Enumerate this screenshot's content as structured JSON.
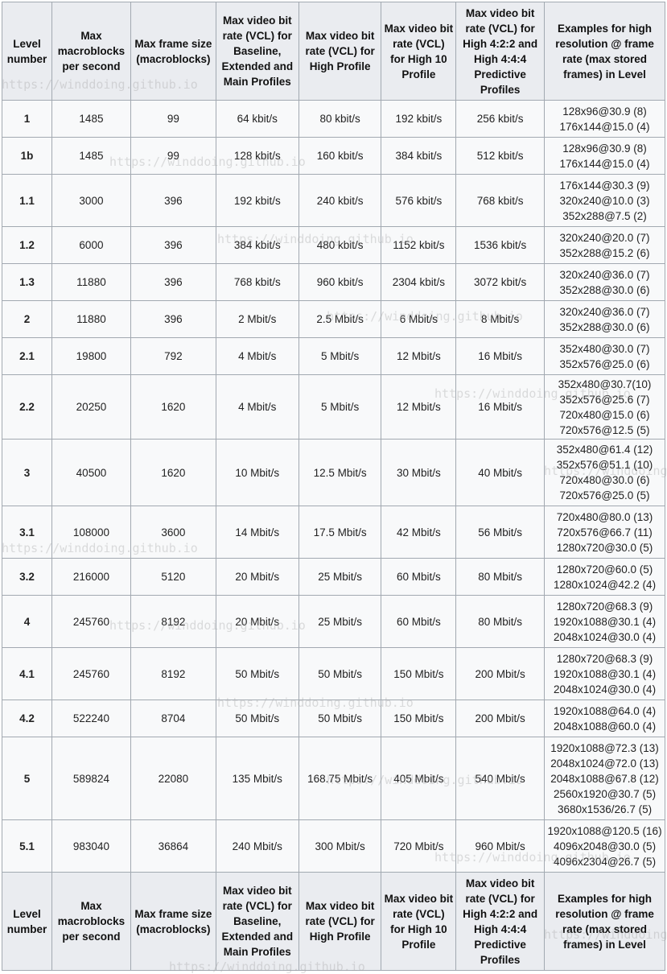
{
  "headers": [
    "Level number",
    "Max macroblocks per second",
    "Max frame size (macroblocks)",
    "Max video bit rate (VCL) for Baseline, Extended and Main Profiles",
    "Max video bit rate (VCL) for High Profile",
    "Max video bit rate (VCL) for High 10 Profile",
    "Max video bit rate (VCL) for High 4:2:2 and High 4:4:4 Predictive Profiles",
    "Examples for high resolution @ frame rate (max stored frames) in Level"
  ],
  "rows": [
    [
      "1",
      "1485",
      "99",
      "64 kbit/s",
      "80 kbit/s",
      "192 kbit/s",
      "256 kbit/s",
      [
        "128x96@30.9 (8)",
        "176x144@15.0 (4)"
      ]
    ],
    [
      "1b",
      "1485",
      "99",
      "128 kbit/s",
      "160 kbit/s",
      "384 kbit/s",
      "512 kbit/s",
      [
        "128x96@30.9 (8)",
        "176x144@15.0 (4)"
      ]
    ],
    [
      "1.1",
      "3000",
      "396",
      "192 kbit/s",
      "240 kbit/s",
      "576 kbit/s",
      "768 kbit/s",
      [
        "176x144@30.3 (9)",
        "320x240@10.0 (3)",
        "352x288@7.5 (2)"
      ]
    ],
    [
      "1.2",
      "6000",
      "396",
      "384 kbit/s",
      "480 kbit/s",
      "1152 kbit/s",
      "1536 kbit/s",
      [
        "320x240@20.0 (7)",
        "352x288@15.2 (6)"
      ]
    ],
    [
      "1.3",
      "11880",
      "396",
      "768 kbit/s",
      "960 kbit/s",
      "2304 kbit/s",
      "3072 kbit/s",
      [
        "320x240@36.0 (7)",
        "352x288@30.0 (6)"
      ]
    ],
    [
      "2",
      "11880",
      "396",
      "2 Mbit/s",
      "2.5 Mbit/s",
      "6 Mbit/s",
      "8 Mbit/s",
      [
        "320x240@36.0 (7)",
        "352x288@30.0 (6)"
      ]
    ],
    [
      "2.1",
      "19800",
      "792",
      "4 Mbit/s",
      "5 Mbit/s",
      "12 Mbit/s",
      "16 Mbit/s",
      [
        "352x480@30.0 (7)",
        "352x576@25.0 (6)"
      ]
    ],
    [
      "2.2",
      "20250",
      "1620",
      "4 Mbit/s",
      "5 Mbit/s",
      "12 Mbit/s",
      "16 Mbit/s",
      [
        "352x480@30.7(10)",
        "352x576@25.6 (7)",
        "720x480@15.0 (6)",
        "720x576@12.5 (5)"
      ]
    ],
    [
      "3",
      "40500",
      "1620",
      "10 Mbit/s",
      "12.5 Mbit/s",
      "30 Mbit/s",
      "40 Mbit/s",
      [
        "352x480@61.4 (12)",
        "352x576@51.1 (10)",
        "720x480@30.0 (6)",
        "720x576@25.0 (5)"
      ]
    ],
    [
      "3.1",
      "108000",
      "3600",
      "14 Mbit/s",
      "17.5 Mbit/s",
      "42 Mbit/s",
      "56 Mbit/s",
      [
        "720x480@80.0 (13)",
        "720x576@66.7 (11)",
        "1280x720@30.0 (5)"
      ]
    ],
    [
      "3.2",
      "216000",
      "5120",
      "20 Mbit/s",
      "25 Mbit/s",
      "60 Mbit/s",
      "80 Mbit/s",
      [
        "1280x720@60.0 (5)",
        "1280x1024@42.2 (4)"
      ]
    ],
    [
      "4",
      "245760",
      "8192",
      "20 Mbit/s",
      "25 Mbit/s",
      "60 Mbit/s",
      "80 Mbit/s",
      [
        "1280x720@68.3 (9)",
        "1920x1088@30.1 (4)",
        "2048x1024@30.0 (4)"
      ]
    ],
    [
      "4.1",
      "245760",
      "8192",
      "50 Mbit/s",
      "50 Mbit/s",
      "150 Mbit/s",
      "200 Mbit/s",
      [
        "1280x720@68.3 (9)",
        "1920x1088@30.1 (4)",
        "2048x1024@30.0 (4)"
      ]
    ],
    [
      "4.2",
      "522240",
      "8704",
      "50 Mbit/s",
      "50 Mbit/s",
      "150 Mbit/s",
      "200 Mbit/s",
      [
        "1920x1088@64.0 (4)",
        "2048x1088@60.0 (4)"
      ]
    ],
    [
      "5",
      "589824",
      "22080",
      "135 Mbit/s",
      "168.75 Mbit/s",
      "405 Mbit/s",
      "540 Mbit/s",
      [
        "1920x1088@72.3 (13)",
        "2048x1024@72.0 (13)",
        "2048x1088@67.8 (12)",
        "2560x1920@30.7 (5)",
        "3680x1536/26.7 (5)"
      ]
    ],
    [
      "5.1",
      "983040",
      "36864",
      "240 Mbit/s",
      "300 Mbit/s",
      "720 Mbit/s",
      "960 Mbit/s",
      [
        "1920x1088@120.5 (16)",
        "4096x2048@30.0 (5)",
        "4096x2304@26.7 (5)"
      ]
    ]
  ],
  "watermark": "https://winddoing.github.io"
}
